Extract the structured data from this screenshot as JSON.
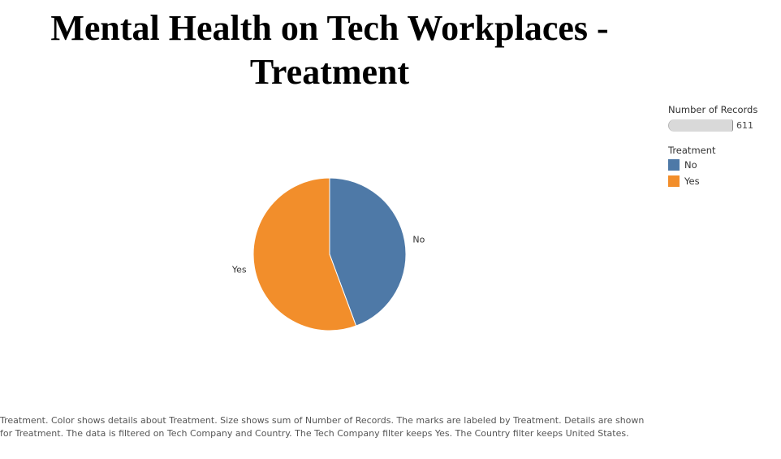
{
  "title": "Mental Health on Tech Workplaces - Treatment",
  "chart_data": {
    "type": "pie",
    "title": "Mental Health on Tech Workplaces - Treatment",
    "categories": [
      "No",
      "Yes"
    ],
    "values": [
      271,
      340
    ],
    "colors": [
      "#4e79a7",
      "#f28e2b"
    ],
    "slice_labels": [
      "No",
      "Yes"
    ],
    "size_legend": {
      "title": "Number of Records",
      "value": "611"
    },
    "color_legend": {
      "title": "Treatment",
      "items": [
        {
          "label": "No",
          "color": "#4e79a7"
        },
        {
          "label": "Yes",
          "color": "#f28e2b"
        }
      ]
    }
  },
  "caption": "Treatment.  Color shows details about Treatment.  Size shows sum of Number of Records.  The marks are labeled by Treatment.  Details are shown for Treatment. The data is filtered on Tech Company and Country. The Tech Company filter keeps Yes. The Country filter keeps United States."
}
